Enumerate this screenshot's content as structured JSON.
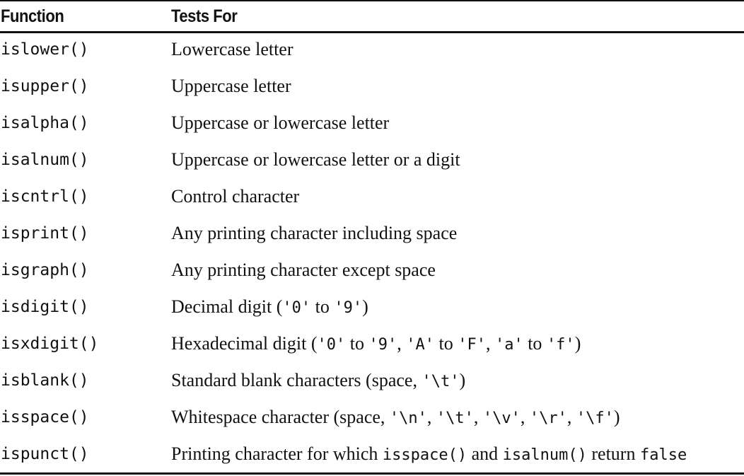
{
  "header": {
    "col1": "Function",
    "col2": "Tests For"
  },
  "rows": [
    {
      "fn": "islower()",
      "desc": [
        {
          "t": "Lowercase letter"
        }
      ]
    },
    {
      "fn": "isupper()",
      "desc": [
        {
          "t": "Uppercase letter"
        }
      ]
    },
    {
      "fn": "isalpha()",
      "desc": [
        {
          "t": "Uppercase or lowercase letter"
        }
      ]
    },
    {
      "fn": "isalnum()",
      "desc": [
        {
          "t": "Uppercase or lowercase letter or a digit"
        }
      ]
    },
    {
      "fn": "iscntrl()",
      "desc": [
        {
          "t": "Control character"
        }
      ]
    },
    {
      "fn": "isprint()",
      "desc": [
        {
          "t": "Any printing character including space"
        }
      ]
    },
    {
      "fn": "isgraph()",
      "desc": [
        {
          "t": "Any printing character except space"
        }
      ]
    },
    {
      "fn": "isdigit()",
      "desc": [
        {
          "t": "Decimal digit ("
        },
        {
          "c": "'0'"
        },
        {
          "t": " to "
        },
        {
          "c": "'9'"
        },
        {
          "t": ")"
        }
      ]
    },
    {
      "fn": "isxdigit()",
      "desc": [
        {
          "t": "Hexadecimal digit ("
        },
        {
          "c": "'0'"
        },
        {
          "t": " to "
        },
        {
          "c": "'9'"
        },
        {
          "t": ", "
        },
        {
          "c": "'A'"
        },
        {
          "t": " to "
        },
        {
          "c": "'F'"
        },
        {
          "t": ", "
        },
        {
          "c": "'a'"
        },
        {
          "t": " to "
        },
        {
          "c": "'f'"
        },
        {
          "t": ")"
        }
      ]
    },
    {
      "fn": "isblank()",
      "desc": [
        {
          "t": "Standard blank characters (space, "
        },
        {
          "c": "'\\t'"
        },
        {
          "t": ")"
        }
      ]
    },
    {
      "fn": "isspace()",
      "desc": [
        {
          "t": "Whitespace character (space, "
        },
        {
          "c": "'\\n'"
        },
        {
          "t": ", "
        },
        {
          "c": "'\\t'"
        },
        {
          "t": ", "
        },
        {
          "c": "'\\v'"
        },
        {
          "t": ", "
        },
        {
          "c": "'\\r'"
        },
        {
          "t": ", "
        },
        {
          "c": "'\\f'"
        },
        {
          "t": ")"
        }
      ]
    },
    {
      "fn": "ispunct()",
      "desc": [
        {
          "t": "Printing character for which "
        },
        {
          "c": "isspace()"
        },
        {
          "t": " and "
        },
        {
          "c": "isalnum()"
        },
        {
          "t": " return "
        },
        {
          "c": "false"
        }
      ]
    }
  ]
}
